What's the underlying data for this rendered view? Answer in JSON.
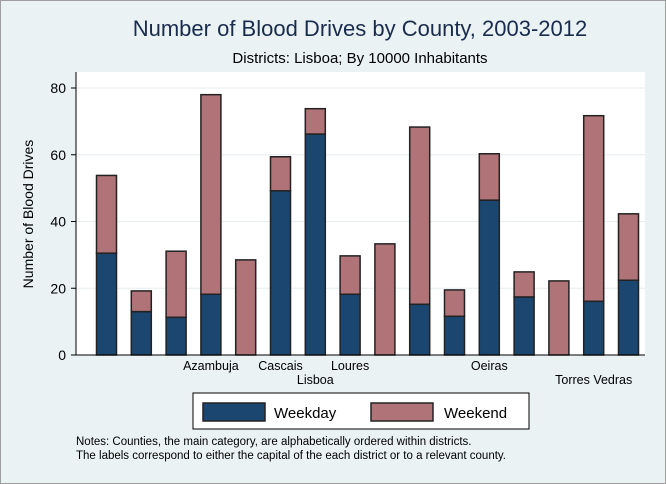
{
  "chart_data": {
    "type": "bar",
    "stacked": true,
    "title": "Number of Blood Drives by County, 2003-2012",
    "subtitle": "Districts: Lisboa; By 10000 Inhabitants",
    "ylabel": "Number of Blood Drives",
    "xlabel": "",
    "ylim": [
      0,
      80
    ],
    "yticks": [
      0,
      20,
      40,
      60,
      80
    ],
    "categories": [
      "",
      "",
      "",
      "Azambuja",
      "",
      "Cascais",
      "Lisboa",
      "Loures",
      "",
      "",
      "",
      "Oeiras",
      "",
      "",
      "Torres Vedras",
      ""
    ],
    "series": [
      {
        "name": "Weekday",
        "color": "#1a4670",
        "values": [
          30.5,
          13,
          11.3,
          18.2,
          0,
          49.2,
          66.2,
          18.2,
          0,
          15.2,
          11.6,
          46.4,
          17.4,
          0,
          16.1,
          22.4
        ]
      },
      {
        "name": "Weekend",
        "color": "#b07377",
        "values": [
          23.3,
          6.2,
          19.8,
          59.8,
          28.5,
          10.2,
          7.6,
          11.5,
          33.3,
          53.1,
          7.9,
          13.9,
          7.5,
          22.2,
          55.6,
          19.9
        ]
      }
    ],
    "legend": [
      "Weekday",
      "Weekend"
    ]
  },
  "notes": [
    "Notes: Counties, the main category, are alphabetically ordered within districts.",
    "The labels correspond to either the capital of the each district or to a relevant county."
  ]
}
